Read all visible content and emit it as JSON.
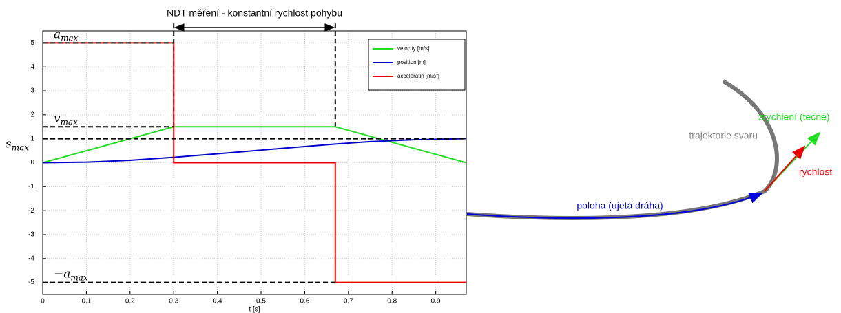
{
  "chart_data": {
    "type": "line",
    "annotation": "NDT měření - konstantní rychlost pohybu",
    "xlabel": "t [s]",
    "xlim": [
      0,
      0.97
    ],
    "ylim": [
      -5.5,
      5.5
    ],
    "xticks": [
      0,
      0.1,
      0.2,
      0.3,
      0.4,
      0.5,
      0.6,
      0.7,
      0.8,
      0.9
    ],
    "yticks": [
      -5,
      -4,
      -3,
      -2,
      -1,
      0,
      1,
      2,
      3,
      4,
      5
    ],
    "grid": true,
    "legend": "upper right",
    "series": [
      {
        "name": "velocity [m/s]",
        "color": "#22dd22",
        "x": [
          0,
          0.3,
          0.67,
          0.97
        ],
        "values": [
          0,
          1.5,
          1.5,
          0
        ]
      },
      {
        "name": "position [m]",
        "color": "#0000cc",
        "x": [
          0,
          0.1,
          0.2,
          0.3,
          0.4,
          0.5,
          0.6,
          0.67,
          0.75,
          0.85,
          0.97
        ],
        "values": [
          0,
          0.025,
          0.1,
          0.225,
          0.375,
          0.525,
          0.675,
          0.78,
          0.88,
          0.96,
          1.005
        ]
      },
      {
        "name": "acceleratin [m/s²]",
        "color": "#ee0000",
        "x": [
          0,
          0.3,
          0.3,
          0.67,
          0.67,
          0.97
        ],
        "values": [
          5,
          5,
          0,
          0,
          -5,
          -5
        ]
      }
    ],
    "hlines": [
      {
        "y": 5,
        "xmax": 0.3,
        "base": "a",
        "sub": "max"
      },
      {
        "y": 1.5,
        "xmax": 0.3,
        "base": "v",
        "sub": "max"
      },
      {
        "y": 1,
        "xmax": 0.97,
        "base": "s",
        "sub": "max"
      },
      {
        "y": -5,
        "xmax": 0.67,
        "base": "−a",
        "sub": "max"
      }
    ],
    "vlines": [
      {
        "x": 0.3,
        "ymin": 1.5
      },
      {
        "x": 0.67,
        "ymin": 1.5
      }
    ]
  },
  "diagram": {
    "trajectory": "trajektorie svaru",
    "acceleration": "zrychlení (tečné)",
    "velocity": "rychlost",
    "position": "poloha (ujetá dráha)"
  }
}
